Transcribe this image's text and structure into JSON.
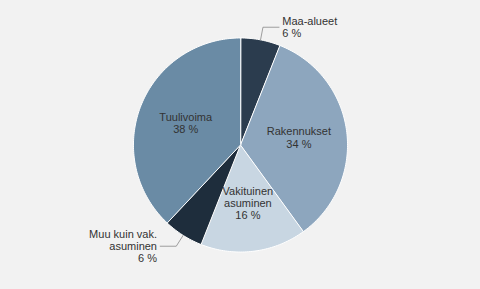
{
  "chart_data": {
    "type": "pie",
    "categories": [
      "Maa-alueet",
      "Rakennukset",
      "Vakituinen\nasuminen",
      "Muu kuin vak.\nasuminen",
      "Tuulivoima"
    ],
    "values": [
      6,
      34,
      16,
      6,
      38
    ],
    "value_labels": [
      "6 %",
      "34 %",
      "16 %",
      "6 %",
      "38 %"
    ],
    "colors": [
      "#2b3c4e",
      "#8da6be",
      "#c8d6e2",
      "#1e2d3c",
      "#6a8ba5"
    ],
    "data_labels": true
  }
}
